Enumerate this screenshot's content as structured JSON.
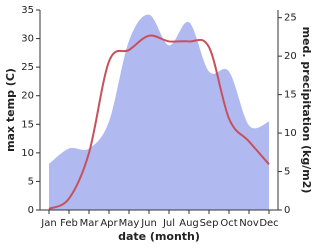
{
  "chart_data": {
    "type": "line-area",
    "x_label": "date (month)",
    "y_label": "max temp (C)",
    "y2_label": "med. precipitation (kg/m2)",
    "categories": [
      "Jan",
      "Feb",
      "Mar",
      "Apr",
      "May",
      "Jun",
      "Jul",
      "Aug",
      "Sep",
      "Oct",
      "Nov",
      "Dec"
    ],
    "series": [
      {
        "name": "max temp",
        "type": "line",
        "color": "#c8505c",
        "values": [
          0.2,
          2,
          10,
          26,
          28,
          30.5,
          29.5,
          29.5,
          28.5,
          16,
          12,
          8
        ]
      },
      {
        "name": "med. precipitation",
        "type": "area",
        "axis": "y2",
        "color": "#b0baf0",
        "values": [
          6,
          8,
          8,
          11.5,
          22,
          25.4,
          21.4,
          24.4,
          18,
          18,
          11,
          11.5
        ]
      }
    ],
    "ylim": [
      0,
      35
    ],
    "yticks": [
      0,
      5,
      10,
      15,
      20,
      25,
      30,
      35
    ],
    "y2lim": [
      0,
      26
    ],
    "y2ticks": [
      0,
      5,
      10,
      15,
      20,
      25
    ]
  }
}
